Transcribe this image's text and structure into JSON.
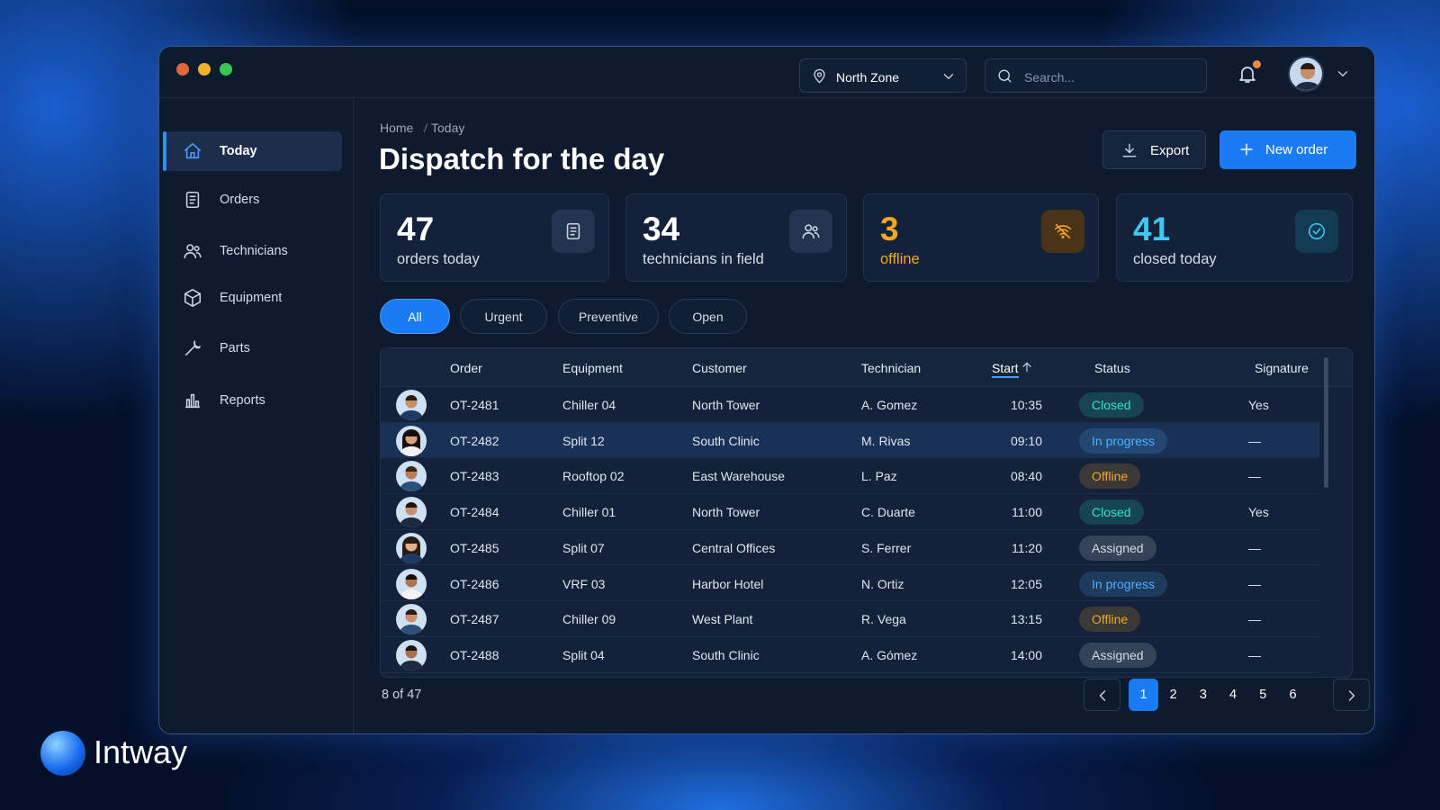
{
  "window": {
    "zone": "North Zone",
    "search_placeholder": "Search..."
  },
  "sidebar": {
    "items": [
      "Today",
      "Orders",
      "Technicians",
      "Equipment",
      "Parts",
      "Reports"
    ]
  },
  "breadcrumb": [
    "Home",
    "Today"
  ],
  "title": "Dispatch for the day",
  "actions": [
    "Export",
    "New order"
  ],
  "stats": [
    {
      "value": 47,
      "label": "orders today",
      "color": "#ffffff"
    },
    {
      "value": 34,
      "label": "technicians in field",
      "color": "#ffffff"
    },
    {
      "value": 3,
      "label": "offline",
      "color": "#f5a623"
    },
    {
      "value": 41,
      "label": "closed today",
      "color": "#3ec8f0"
    }
  ],
  "filters": [
    "All",
    "Urgent",
    "Preventive",
    "Open"
  ],
  "table": {
    "columns": [
      "Order",
      "Equipment",
      "Customer",
      "Technician",
      "Start",
      "Status",
      "Signature"
    ],
    "rows": [
      {
        "order": "OT-2481",
        "equipment": "Chiller 04",
        "customer": "North Tower",
        "technician": "A. Gomez",
        "start": "10:35",
        "status": "Closed",
        "status_color": "#2ee6c0",
        "signature": "Yes"
      },
      {
        "order": "OT-2482",
        "equipment": "Split 12",
        "customer": "South Clinic",
        "technician": "M. Rivas",
        "start": "09:10",
        "status": "In progress",
        "status_color": "#4fb0ff",
        "signature": "—"
      },
      {
        "order": "OT-2483",
        "equipment": "Rooftop 02",
        "customer": "East Warehouse",
        "technician": "L. Paz",
        "start": "08:40",
        "status": "Offline",
        "status_color": "#f5a623",
        "signature": "—"
      },
      {
        "order": "OT-2484",
        "equipment": "Chiller 01",
        "customer": "North Tower",
        "technician": "C. Duarte",
        "start": "11:00",
        "status": "Closed",
        "status_color": "#2ee6c0",
        "signature": "Yes"
      },
      {
        "order": "OT-2485",
        "equipment": "Split 07",
        "customer": "Central Offices",
        "technician": "S. Ferrer",
        "start": "11:20",
        "status": "Assigned",
        "status_color": "#d5dbe5",
        "signature": "—"
      },
      {
        "order": "OT-2486",
        "equipment": "VRF 03",
        "customer": "Harbor Hotel",
        "technician": "N. Ortiz",
        "start": "12:05",
        "status": "In progress",
        "status_color": "#4fb0ff",
        "signature": "—"
      },
      {
        "order": "OT-2487",
        "equipment": "Chiller 09",
        "customer": "West Plant",
        "technician": "R. Vega",
        "start": "13:15",
        "status": "Offline",
        "status_color": "#f5a623",
        "signature": "—"
      },
      {
        "order": "OT-2488",
        "equipment": "Split 04",
        "customer": "South Clinic",
        "technician": "A. Gómez",
        "start": "14:00",
        "status": "Assigned",
        "status_color": "#d5dbe5",
        "signature": "—"
      }
    ]
  },
  "footer": {
    "count": "8 of 47",
    "pages": [
      "1",
      "2",
      "3",
      "4",
      "5",
      "6"
    ]
  },
  "brand": "Intway"
}
